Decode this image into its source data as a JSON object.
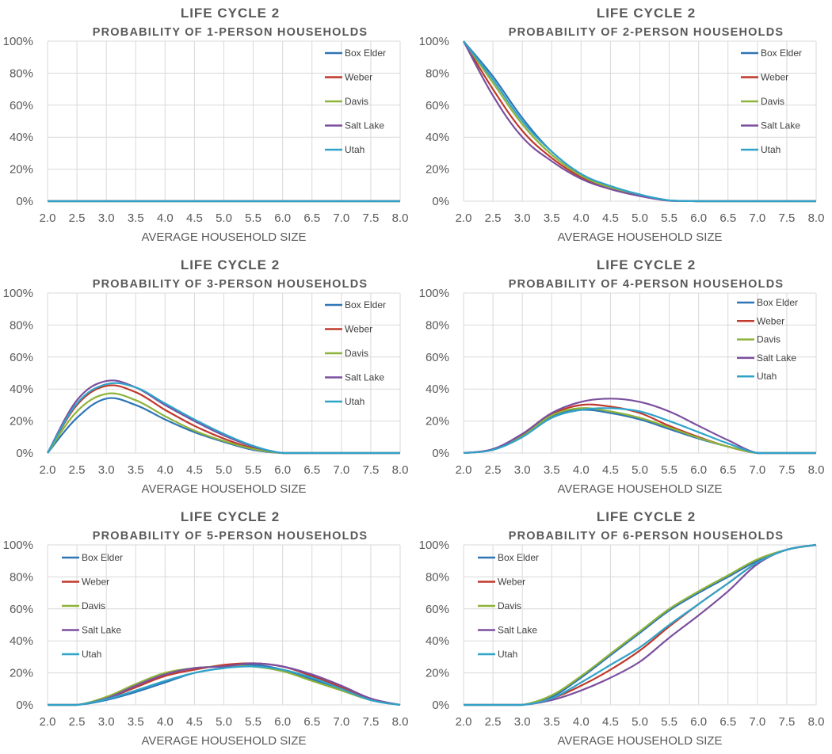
{
  "colors": {
    "Box Elder": "#2E75B6",
    "Weber": "#C0392B",
    "Davis": "#8DB33A",
    "Salt Lake": "#7B4F9E",
    "Utah": "#2FA3C9",
    "grid": "#D9D9D9",
    "text": "#595959"
  },
  "chart_data": [
    {
      "type": "line",
      "title": "LIFE CYCLE 2",
      "subtitle": "PROBABILITY OF 1-PERSON HOUSEHOLDS",
      "xlabel": "AVERAGE HOUSEHOLD SIZE",
      "ylabel": "",
      "x": [
        2.0,
        2.5,
        3.0,
        3.5,
        4.0,
        4.5,
        5.0,
        5.5,
        6.0,
        6.5,
        7.0,
        7.5,
        8.0
      ],
      "xlim": [
        2.0,
        8.0
      ],
      "ylim": [
        0,
        100
      ],
      "xticks": [
        "2.0",
        "2.5",
        "3.0",
        "3.5",
        "4.0",
        "4.5",
        "5.0",
        "5.5",
        "6.0",
        "6.5",
        "7.0",
        "7.5",
        "8.0"
      ],
      "yticks": [
        "0%",
        "20%",
        "40%",
        "60%",
        "80%",
        "100%"
      ],
      "legend_position": "top-right",
      "series": [
        {
          "name": "Box Elder",
          "values": [
            0,
            0,
            0,
            0,
            0,
            0,
            0,
            0,
            0,
            0,
            0,
            0,
            0
          ]
        },
        {
          "name": "Weber",
          "values": [
            0,
            0,
            0,
            0,
            0,
            0,
            0,
            0,
            0,
            0,
            0,
            0,
            0
          ]
        },
        {
          "name": "Davis",
          "values": [
            0,
            0,
            0,
            0,
            0,
            0,
            0,
            0,
            0,
            0,
            0,
            0,
            0
          ]
        },
        {
          "name": "Salt Lake",
          "values": [
            0,
            0,
            0,
            0,
            0,
            0,
            0,
            0,
            0,
            0,
            0,
            0,
            0
          ]
        },
        {
          "name": "Utah",
          "values": [
            0,
            0,
            0,
            0,
            0,
            0,
            0,
            0,
            0,
            0,
            0,
            0,
            0
          ]
        }
      ]
    },
    {
      "type": "line",
      "title": "LIFE CYCLE 2",
      "subtitle": "PROBABILITY OF 2-PERSON HOUSEHOLDS",
      "xlabel": "AVERAGE HOUSEHOLD SIZE",
      "ylabel": "",
      "x": [
        2.0,
        2.5,
        3.0,
        3.5,
        4.0,
        4.5,
        5.0,
        5.5,
        6.0,
        6.5,
        7.0,
        7.5,
        8.0
      ],
      "xlim": [
        2.0,
        8.0
      ],
      "ylim": [
        0,
        100
      ],
      "xticks": [
        "2.0",
        "2.5",
        "3.0",
        "3.5",
        "4.0",
        "4.5",
        "5.0",
        "5.5",
        "6.0",
        "6.5",
        "7.0",
        "7.5",
        "8.0"
      ],
      "yticks": [
        "0%",
        "20%",
        "40%",
        "60%",
        "80%",
        "100%"
      ],
      "legend_position": "top-right",
      "series": [
        {
          "name": "Box Elder",
          "values": [
            100,
            78,
            52,
            31,
            17,
            9,
            4,
            0.5,
            0,
            0,
            0,
            0,
            0
          ]
        },
        {
          "name": "Weber",
          "values": [
            100,
            70,
            44,
            27,
            15,
            8,
            3.5,
            0.3,
            0,
            0,
            0,
            0,
            0
          ]
        },
        {
          "name": "Davis",
          "values": [
            100,
            74,
            48,
            29,
            16,
            8.5,
            3.8,
            0.4,
            0,
            0,
            0,
            0,
            0
          ]
        },
        {
          "name": "Salt Lake",
          "values": [
            100,
            66,
            40,
            25,
            14,
            7.5,
            3.2,
            0.3,
            0,
            0,
            0,
            0,
            0
          ]
        },
        {
          "name": "Utah",
          "values": [
            100,
            76,
            50,
            31,
            17,
            9.5,
            4.2,
            0.5,
            0,
            0,
            0,
            0,
            0
          ]
        }
      ]
    },
    {
      "type": "line",
      "title": "LIFE CYCLE 2",
      "subtitle": "PROBABILITY OF 3-PERSON HOUSEHOLDS",
      "xlabel": "AVERAGE HOUSEHOLD SIZE",
      "ylabel": "",
      "x": [
        2.0,
        2.5,
        3.0,
        3.5,
        4.0,
        4.5,
        5.0,
        5.5,
        6.0,
        6.5,
        7.0,
        7.5,
        8.0
      ],
      "xlim": [
        2.0,
        8.0
      ],
      "ylim": [
        0,
        100
      ],
      "xticks": [
        "2.0",
        "2.5",
        "3.0",
        "3.5",
        "4.0",
        "4.5",
        "5.0",
        "5.5",
        "6.0",
        "6.5",
        "7.0",
        "7.5",
        "8.0"
      ],
      "yticks": [
        "0%",
        "20%",
        "40%",
        "60%",
        "80%",
        "100%"
      ],
      "legend_position": "top-right",
      "series": [
        {
          "name": "Box Elder",
          "values": [
            0,
            22,
            34,
            30,
            21,
            13,
            7,
            2,
            0,
            0,
            0,
            0,
            0
          ]
        },
        {
          "name": "Weber",
          "values": [
            0,
            30,
            42,
            38,
            27,
            17,
            9,
            3,
            0,
            0,
            0,
            0,
            0
          ]
        },
        {
          "name": "Davis",
          "values": [
            0,
            26,
            37,
            33,
            23,
            14,
            7.5,
            2.5,
            0,
            0,
            0,
            0,
            0
          ]
        },
        {
          "name": "Salt Lake",
          "values": [
            0,
            33,
            45,
            41,
            30,
            20,
            11,
            4,
            0,
            0,
            0,
            0,
            0
          ]
        },
        {
          "name": "Utah",
          "values": [
            0,
            31,
            43,
            41,
            31,
            21,
            12,
            4.5,
            0,
            0,
            0,
            0,
            0
          ]
        }
      ]
    },
    {
      "type": "line",
      "title": "LIFE CYCLE 2",
      "subtitle": "PROBABILITY OF 4-PERSON HOUSEHOLDS",
      "xlabel": "AVERAGE HOUSEHOLD SIZE",
      "ylabel": "",
      "x": [
        2.0,
        2.5,
        3.0,
        3.5,
        4.0,
        4.5,
        5.0,
        5.5,
        6.0,
        6.5,
        7.0,
        7.5,
        8.0
      ],
      "xlim": [
        2.0,
        8.0
      ],
      "ylim": [
        0,
        100
      ],
      "xticks": [
        "2.0",
        "2.5",
        "3.0",
        "3.5",
        "4.0",
        "4.5",
        "5.0",
        "5.5",
        "6.0",
        "6.5",
        "7.0",
        "7.5",
        "8.0"
      ],
      "yticks": [
        "0%",
        "20%",
        "40%",
        "60%",
        "80%",
        "100%"
      ],
      "legend_position": "top-right",
      "series": [
        {
          "name": "Box Elder",
          "values": [
            0,
            2,
            10,
            23,
            27,
            25,
            21,
            15,
            9,
            4,
            0,
            0,
            0
          ]
        },
        {
          "name": "Weber",
          "values": [
            0,
            2.2,
            11,
            24,
            30,
            29,
            25,
            17,
            10,
            4,
            0,
            0,
            0
          ]
        },
        {
          "name": "Davis",
          "values": [
            0,
            2.2,
            10.5,
            23.5,
            28,
            26,
            22,
            16,
            9.5,
            4,
            0,
            0,
            0
          ]
        },
        {
          "name": "Salt Lake",
          "values": [
            0,
            2.5,
            12,
            25,
            32,
            34,
            32,
            26,
            17,
            8,
            0,
            0,
            0
          ]
        },
        {
          "name": "Utah",
          "values": [
            0,
            2,
            10,
            22,
            27,
            28,
            26,
            20,
            13,
            6,
            0,
            0,
            0
          ]
        }
      ]
    },
    {
      "type": "line",
      "title": "LIFE CYCLE 2",
      "subtitle": "PROBABILITY OF 5-PERSON HOUSEHOLDS",
      "xlabel": "AVERAGE HOUSEHOLD SIZE",
      "ylabel": "",
      "x": [
        2.0,
        2.5,
        3.0,
        3.5,
        4.0,
        4.5,
        5.0,
        5.5,
        6.0,
        6.5,
        7.0,
        7.5,
        8.0
      ],
      "xlim": [
        2.0,
        8.0
      ],
      "ylim": [
        0,
        100
      ],
      "xticks": [
        "2.0",
        "2.5",
        "3.0",
        "3.5",
        "4.0",
        "4.5",
        "5.0",
        "5.5",
        "6.0",
        "6.5",
        "7.0",
        "7.5",
        "8.0"
      ],
      "yticks": [
        "0%",
        "20%",
        "40%",
        "60%",
        "80%",
        "100%"
      ],
      "legend_position": "top-left",
      "series": [
        {
          "name": "Box Elder",
          "values": [
            0,
            0,
            3,
            8,
            14,
            20,
            23,
            25,
            22,
            16,
            10,
            3,
            0
          ]
        },
        {
          "name": "Weber",
          "values": [
            0,
            0,
            4,
            11,
            18,
            22,
            25,
            26,
            24,
            18,
            11,
            3.5,
            0
          ]
        },
        {
          "name": "Davis",
          "values": [
            0,
            0,
            5,
            13,
            20,
            23,
            24,
            24,
            21,
            15,
            9,
            3,
            0
          ]
        },
        {
          "name": "Salt Lake",
          "values": [
            0,
            0,
            4,
            12,
            19,
            23,
            24,
            26,
            24,
            19,
            12,
            4,
            0
          ]
        },
        {
          "name": "Utah",
          "values": [
            0,
            0,
            3.5,
            9,
            15,
            20,
            23,
            24,
            22,
            17,
            10,
            3,
            0
          ]
        }
      ]
    },
    {
      "type": "line",
      "title": "LIFE CYCLE 2",
      "subtitle": "PROBABILITY OF 6-PERSON HOUSEHOLDS",
      "xlabel": "AVERAGE HOUSEHOLD SIZE",
      "ylabel": "",
      "x": [
        2.0,
        2.5,
        3.0,
        3.5,
        4.0,
        4.5,
        5.0,
        5.5,
        6.0,
        6.5,
        7.0,
        7.5,
        8.0
      ],
      "xlim": [
        2.0,
        8.0
      ],
      "ylim": [
        0,
        100
      ],
      "xticks": [
        "2.0",
        "2.5",
        "3.0",
        "3.5",
        "4.0",
        "4.5",
        "5.0",
        "5.5",
        "6.0",
        "6.5",
        "7.0",
        "7.5",
        "8.0"
      ],
      "yticks": [
        "0%",
        "20%",
        "40%",
        "60%",
        "80%",
        "100%"
      ],
      "legend_position": "top-left",
      "series": [
        {
          "name": "Box Elder",
          "values": [
            0,
            0,
            0,
            5,
            17,
            31,
            45,
            59,
            70,
            80,
            90,
            97,
            100
          ]
        },
        {
          "name": "Weber",
          "values": [
            0,
            0,
            0,
            4,
            12,
            22,
            34,
            49,
            63,
            76,
            89,
            97,
            100
          ]
        },
        {
          "name": "Davis",
          "values": [
            0,
            0,
            0,
            6,
            18,
            32,
            46,
            60,
            71,
            81,
            91,
            97,
            100
          ]
        },
        {
          "name": "Salt Lake",
          "values": [
            0,
            0,
            0,
            3,
            9,
            17,
            27,
            42,
            56,
            71,
            88,
            97,
            100
          ]
        },
        {
          "name": "Utah",
          "values": [
            0,
            0,
            0,
            4,
            14,
            25,
            36,
            50,
            63,
            76,
            89,
            97,
            100
          ]
        }
      ]
    }
  ]
}
